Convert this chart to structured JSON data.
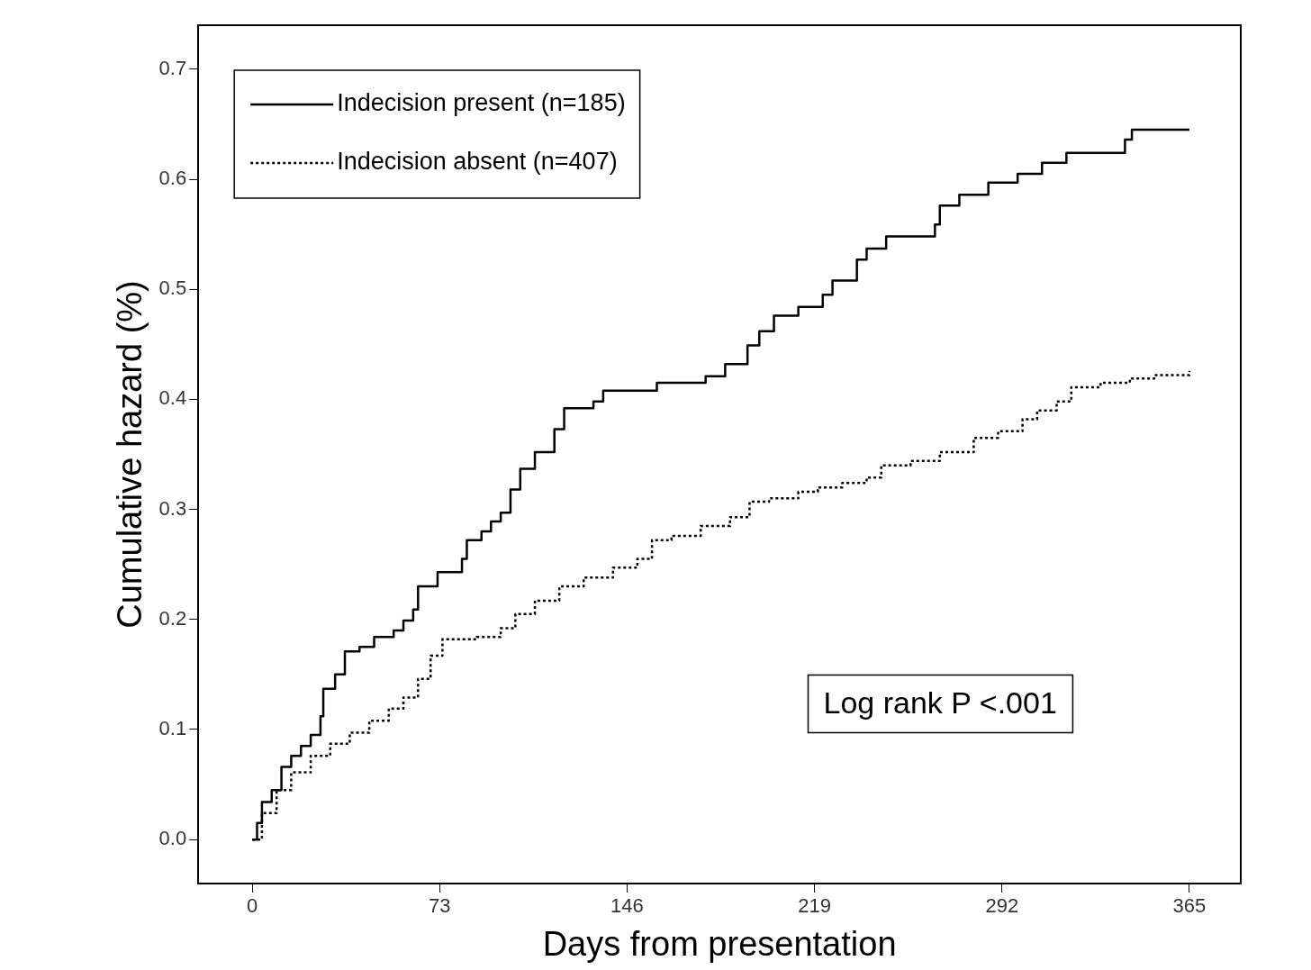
{
  "chart_data": {
    "type": "step",
    "xlabel": "Days from presentation",
    "ylabel": "Cumulative hazard (%)",
    "xlim": [
      -21,
      385
    ],
    "ylim": [
      -0.04,
      0.74
    ],
    "xticks": [
      0,
      73,
      146,
      219,
      292,
      365
    ],
    "yticks": [
      {
        "value": 0,
        "label": "0.0"
      },
      0.1,
      0.2,
      0.3,
      0.4,
      0.5,
      0.6,
      0.7
    ],
    "grid": false,
    "legend": "top left",
    "marker": "none",
    "annotations": [
      "Log rank P <.001"
    ],
    "series": [
      {
        "name": "Indecision present (n=185)",
        "color": "#000000",
        "line_style": "solid",
        "x": [
          0,
          1.9,
          3.8,
          7.6,
          11.4,
          15.2,
          19,
          22.8,
          26.6,
          27.7,
          32.3,
          36.1,
          41.8,
          47.5,
          55.1,
          58.9,
          62.7,
          64.6,
          72.2,
          81.7,
          83.6,
          89.3,
          93,
          96.8,
          100.6,
          104.4,
          110.1,
          117.7,
          121.5,
          132.9,
          136.7,
          157.6,
          176.6,
          184.2,
          192.9,
          197.5,
          203.2,
          212.7,
          222.2,
          226,
          235.5,
          239.3,
          246.9,
          265.9,
          267.8,
          275.4,
          286.7,
          298.1,
          307.6,
          317.1,
          339.9,
          342.6,
          365
        ],
        "values": [
          0,
          0.015,
          0.034,
          0.045,
          0.066,
          0.076,
          0.085,
          0.095,
          0.112,
          0.137,
          0.15,
          0.171,
          0.175,
          0.184,
          0.19,
          0.199,
          0.209,
          0.23,
          0.243,
          0.255,
          0.272,
          0.28,
          0.289,
          0.297,
          0.318,
          0.337,
          0.352,
          0.373,
          0.392,
          0.398,
          0.408,
          0.415,
          0.421,
          0.432,
          0.449,
          0.462,
          0.476,
          0.484,
          0.495,
          0.508,
          0.527,
          0.537,
          0.548,
          0.559,
          0.576,
          0.586,
          0.597,
          0.605,
          0.615,
          0.624,
          0.636,
          0.645,
          0.645
        ]
      },
      {
        "name": "Indecision absent (n=407)",
        "color": "#000000",
        "line_style": "dotted",
        "x": [
          0,
          3.8,
          9.5,
          15.2,
          22.8,
          30.4,
          38,
          45.6,
          53.2,
          58.9,
          64.6,
          69.5,
          74.1,
          87.4,
          96.8,
          102.5,
          110.1,
          119.6,
          129.1,
          140.5,
          150,
          155.7,
          163.3,
          174.7,
          186.1,
          193.7,
          201.3,
          212.7,
          220.3,
          229.8,
          239.3,
          245,
          256.4,
          267.8,
          281,
          290.5,
          300,
          305.7,
          313.3,
          319,
          330.4,
          341.8,
          351.3,
          365
        ],
        "values": [
          0,
          0.024,
          0.045,
          0.061,
          0.076,
          0.087,
          0.097,
          0.108,
          0.119,
          0.129,
          0.146,
          0.167,
          0.182,
          0.184,
          0.192,
          0.205,
          0.217,
          0.23,
          0.238,
          0.247,
          0.255,
          0.272,
          0.276,
          0.285,
          0.293,
          0.307,
          0.31,
          0.316,
          0.32,
          0.324,
          0.329,
          0.34,
          0.344,
          0.352,
          0.365,
          0.371,
          0.382,
          0.39,
          0.398,
          0.411,
          0.415,
          0.419,
          0.422,
          0.426
        ]
      }
    ]
  }
}
